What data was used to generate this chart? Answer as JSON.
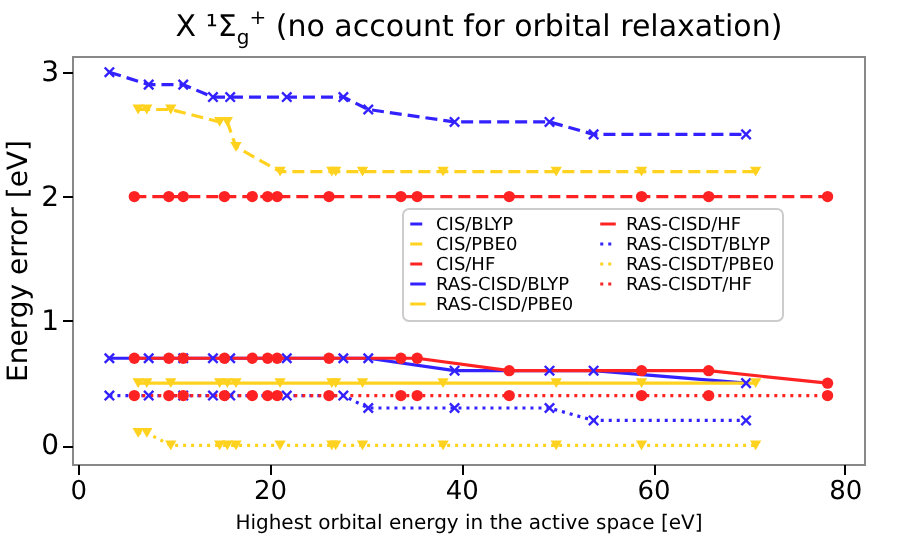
{
  "chart_data": {
    "type": "line",
    "title": "X ¹Σ$_{g}$$^{+}$ (no account for orbital relaxation)",
    "xlabel": "Highest orbital energy in the active space [eV]",
    "ylabel": "Energy error [eV]",
    "xlim": [
      -0.6,
      82
    ],
    "ylim": [
      -0.15,
      3.13
    ],
    "xticks": [
      0,
      20,
      40,
      60,
      80
    ],
    "yticks": [
      0,
      1,
      2,
      3
    ],
    "grid": false,
    "legend": "center right",
    "series": [
      {
        "name": "CIS/BLYP",
        "color": "#3322ff",
        "marker": "cross",
        "line_style": "dashed",
        "x": [
          3.3,
          7.4,
          11.0,
          14.1,
          15.9,
          21.8,
          27.7,
          30.3,
          39.3,
          49.2,
          53.8,
          69.7
        ],
        "values": [
          3.0,
          2.9,
          2.9,
          2.8,
          2.8,
          2.8,
          2.8,
          2.7,
          2.6,
          2.6,
          2.5,
          2.5
        ]
      },
      {
        "name": "CIS/PBE0",
        "color": "#ffd21f",
        "marker": "triangle",
        "line_style": "dashed",
        "x": [
          6.3,
          7.2,
          9.7,
          14.8,
          15.6,
          16.5,
          21.1,
          26.5,
          26.9,
          29.7,
          38.1,
          49.9,
          58.8,
          70.7
        ],
        "values": [
          2.7,
          2.7,
          2.7,
          2.6,
          2.6,
          2.4,
          2.2,
          2.2,
          2.2,
          2.2,
          2.2,
          2.2,
          2.2,
          2.2
        ]
      },
      {
        "name": "CIS/HF",
        "color": "#ff2222",
        "marker": "circle",
        "line_style": "dashed",
        "x": [
          5.9,
          9.5,
          11.0,
          15.3,
          18.2,
          19.8,
          20.8,
          26.2,
          33.7,
          35.4,
          45.0,
          58.8,
          65.8,
          78.2
        ],
        "values": [
          2.0,
          2.0,
          2.0,
          2.0,
          2.0,
          2.0,
          2.0,
          2.0,
          2.0,
          2.0,
          2.0,
          2.0,
          2.0,
          2.0
        ]
      },
      {
        "name": "RAS-CISD/BLYP",
        "color": "#3322ff",
        "marker": "cross",
        "line_style": "solid",
        "x": [
          3.3,
          7.4,
          11.0,
          14.1,
          15.9,
          21.8,
          27.7,
          30.3,
          39.3,
          49.2,
          53.8,
          69.7
        ],
        "values": [
          0.7,
          0.7,
          0.7,
          0.7,
          0.7,
          0.7,
          0.7,
          0.7,
          0.6,
          0.6,
          0.6,
          0.5
        ]
      },
      {
        "name": "RAS-CISD/PBE0",
        "color": "#ffd21f",
        "marker": "triangle",
        "line_style": "solid",
        "x": [
          6.3,
          7.2,
          9.7,
          14.8,
          15.6,
          16.5,
          21.1,
          26.5,
          26.9,
          29.7,
          38.1,
          49.9,
          58.8,
          70.7
        ],
        "values": [
          0.5,
          0.5,
          0.5,
          0.5,
          0.5,
          0.5,
          0.5,
          0.5,
          0.5,
          0.5,
          0.5,
          0.5,
          0.5,
          0.5
        ]
      },
      {
        "name": "RAS-CISD/HF",
        "color": "#ff2222",
        "marker": "circle",
        "line_style": "solid",
        "x": [
          5.9,
          9.5,
          11.0,
          15.3,
          18.2,
          19.8,
          20.8,
          26.2,
          33.7,
          35.4,
          45.0,
          58.8,
          65.8,
          78.2
        ],
        "values": [
          0.7,
          0.7,
          0.7,
          0.7,
          0.7,
          0.7,
          0.7,
          0.7,
          0.7,
          0.7,
          0.6,
          0.6,
          0.6,
          0.5
        ]
      },
      {
        "name": "RAS-CISDT/BLYP",
        "color": "#3322ff",
        "marker": "cross",
        "line_style": "dotted",
        "x": [
          3.3,
          7.4,
          11.0,
          14.1,
          15.9,
          21.8,
          27.7,
          30.3,
          39.3,
          49.2,
          53.8,
          69.7
        ],
        "values": [
          0.4,
          0.4,
          0.4,
          0.4,
          0.4,
          0.4,
          0.4,
          0.3,
          0.3,
          0.3,
          0.2,
          0.2
        ]
      },
      {
        "name": "RAS-CISDT/PBE0",
        "color": "#ffd21f",
        "marker": "triangle",
        "line_style": "dotted",
        "x": [
          6.3,
          7.2,
          9.7,
          14.8,
          15.6,
          16.5,
          21.1,
          26.5,
          26.9,
          29.7,
          38.1,
          49.9,
          58.8,
          70.7
        ],
        "values": [
          0.1,
          0.1,
          0.0,
          0.0,
          0.0,
          0.0,
          0.0,
          0.0,
          0.0,
          0.0,
          0.0,
          0.0,
          0.0,
          0.0
        ]
      },
      {
        "name": "RAS-CISDT/HF",
        "color": "#ff2222",
        "marker": "circle",
        "line_style": "dotted",
        "x": [
          5.9,
          9.5,
          11.0,
          15.3,
          18.2,
          19.8,
          20.8,
          26.2,
          33.7,
          35.4,
          45.0,
          58.8,
          65.8,
          78.2
        ],
        "values": [
          0.4,
          0.4,
          0.4,
          0.4,
          0.4,
          0.4,
          0.4,
          0.4,
          0.4,
          0.4,
          0.4,
          0.4,
          0.4,
          0.4
        ]
      }
    ]
  }
}
